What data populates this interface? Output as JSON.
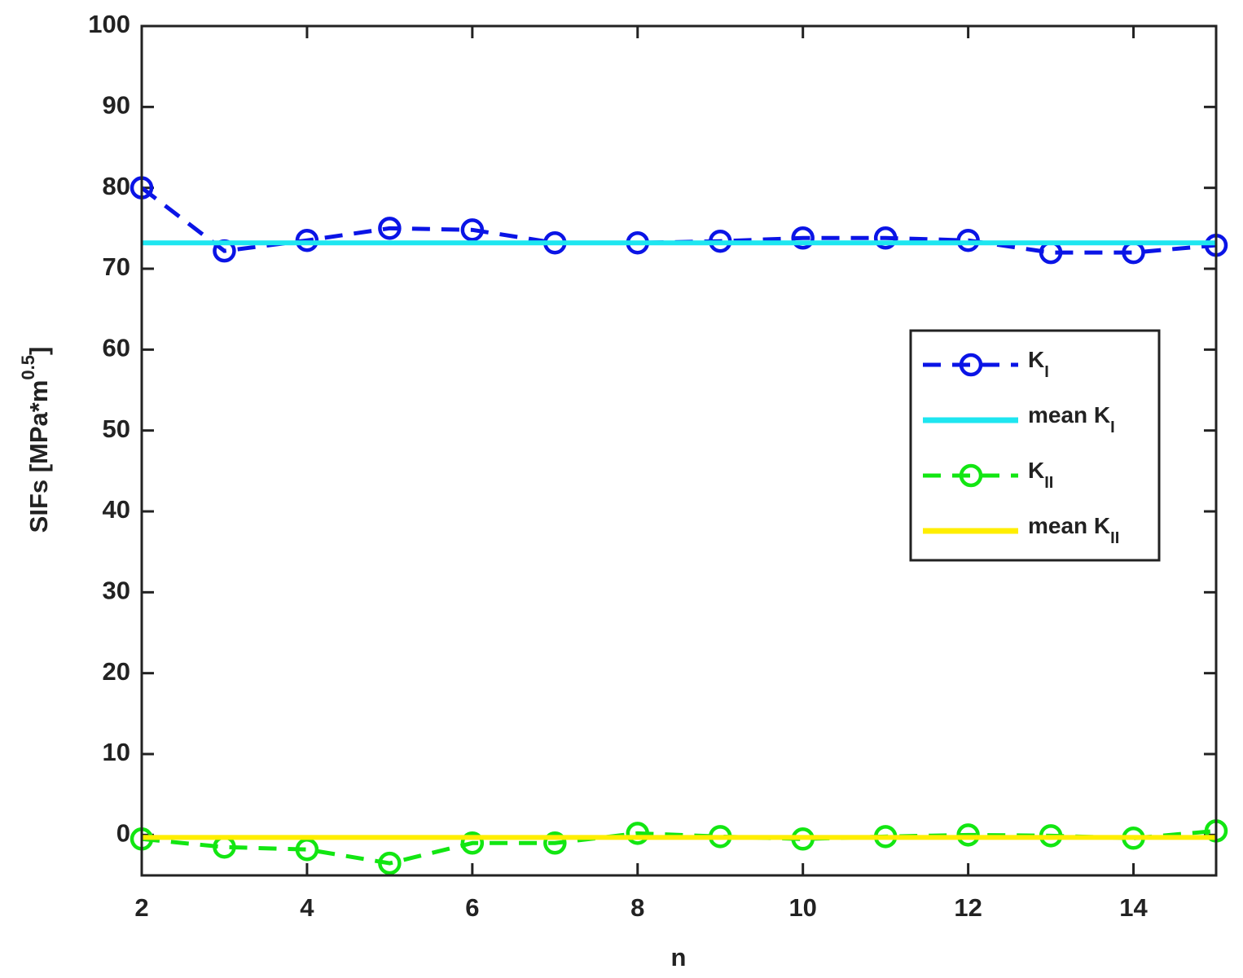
{
  "chart_data": {
    "type": "line",
    "x_label": "n",
    "y_label": {
      "text": "SIFs [MPa*m",
      "superscript": "0.5",
      "closing": "]"
    },
    "x": [
      2,
      3,
      4,
      5,
      6,
      7,
      8,
      9,
      10,
      11,
      12,
      13,
      14,
      15
    ],
    "series": [
      {
        "name": "K",
        "subscript": "I",
        "color": "#0a14e6",
        "style": "dashed",
        "marker": "circle",
        "values": [
          80,
          72.2,
          73.5,
          75,
          74.8,
          73.2,
          73.2,
          73.4,
          73.8,
          73.8,
          73.5,
          72,
          72,
          72.9
        ]
      },
      {
        "name": "mean K",
        "subscript": "I",
        "color": "#1ee6f0",
        "style": "solid",
        "value": 73.2
      },
      {
        "name": "K",
        "subscript": "II",
        "color": "#12e612",
        "style": "dashed",
        "marker": "circle",
        "values": [
          -0.5,
          -1.5,
          -1.8,
          -3.5,
          -1,
          -1,
          0.2,
          -0.2,
          -0.5,
          -0.2,
          0,
          -0.1,
          -0.4,
          0.5
        ]
      },
      {
        "name": "mean K",
        "subscript": "II",
        "color": "#ffee00",
        "style": "solid",
        "value": -0.3
      }
    ],
    "xlim": [
      2,
      15
    ],
    "xticks": [
      2,
      4,
      6,
      8,
      10,
      12,
      14
    ],
    "ylim": [
      -5,
      100
    ],
    "yticks": [
      0,
      10,
      20,
      30,
      40,
      50,
      60,
      70,
      80,
      90,
      100
    ],
    "grid": false,
    "legend": "right"
  }
}
